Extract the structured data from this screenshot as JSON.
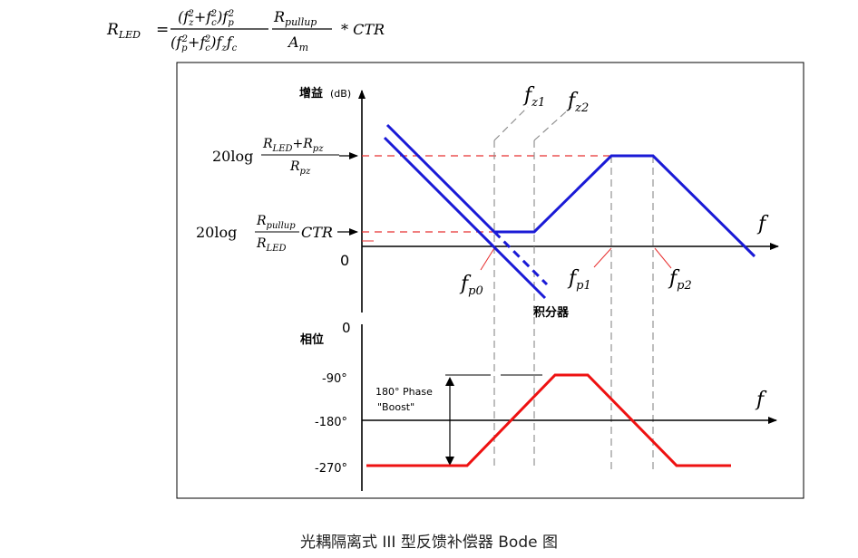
{
  "formula": {
    "lhs": "R",
    "lhs_sub": "LED",
    "eq": "=",
    "num1_a": "(f",
    "num1_zsub": "z",
    "num1_sup2a": "2",
    "num1_plus": "+f",
    "num1_csub": "c",
    "num1_sup2b": "2",
    "num1_close": ")f",
    "num1_psub": "p",
    "num1_sup2c": "2",
    "den1_a": "(f",
    "den1_psub": "p",
    "den1_sup2a": "2",
    "den1_plus": "+f",
    "den1_csub": "c",
    "den1_sup2b": "2",
    "den1_close": ")f",
    "den1_zsub": "z",
    "den1_f": "f",
    "den1_csub2": "c",
    "num2": "R",
    "num2_sub": "pullup",
    "den2": "A",
    "den2_sub": "m",
    "tail": "* CTR"
  },
  "gain_plot": {
    "y_label": "增益",
    "y_unit": "(dB)",
    "level_high_prefix": "20log",
    "level_high_num": "R",
    "level_high_num_sub": "LED",
    "level_high_num_plus": "+R",
    "level_high_num_sub2": "pz",
    "level_high_den": "R",
    "level_high_den_sub": "pz",
    "level_low_prefix": "20log",
    "level_low_num": "R",
    "level_low_num_sub": "pullup",
    "level_low_den": "R",
    "level_low_den_sub": "LED",
    "level_low_suffix": "CTR",
    "zero": "0",
    "x_label": "f",
    "fz1": "f",
    "fz1_sub": "z1",
    "fz2": "f",
    "fz2_sub": "z2",
    "fp0": "f",
    "fp0_sub": "p0",
    "fp1": "f",
    "fp1_sub": "p1",
    "fp2": "f",
    "fp2_sub": "p2",
    "integrator": "积分器"
  },
  "phase_plot": {
    "y_label": "相位",
    "zero": "0",
    "tick_m90": "-90°",
    "tick_m180": "-180°",
    "tick_m270": "-270°",
    "boost_line1": "180° Phase",
    "boost_line2": "\"Boost\"",
    "x_label": "f"
  },
  "colors": {
    "gain_curve": "#1a1ad6",
    "phase_curve": "#ee1111",
    "ref_dash": "#e83030",
    "guide_dash": "#888888",
    "axis": "#000000"
  },
  "caption": "光耦隔离式 III 型反馈补偿器 Bode 图"
}
